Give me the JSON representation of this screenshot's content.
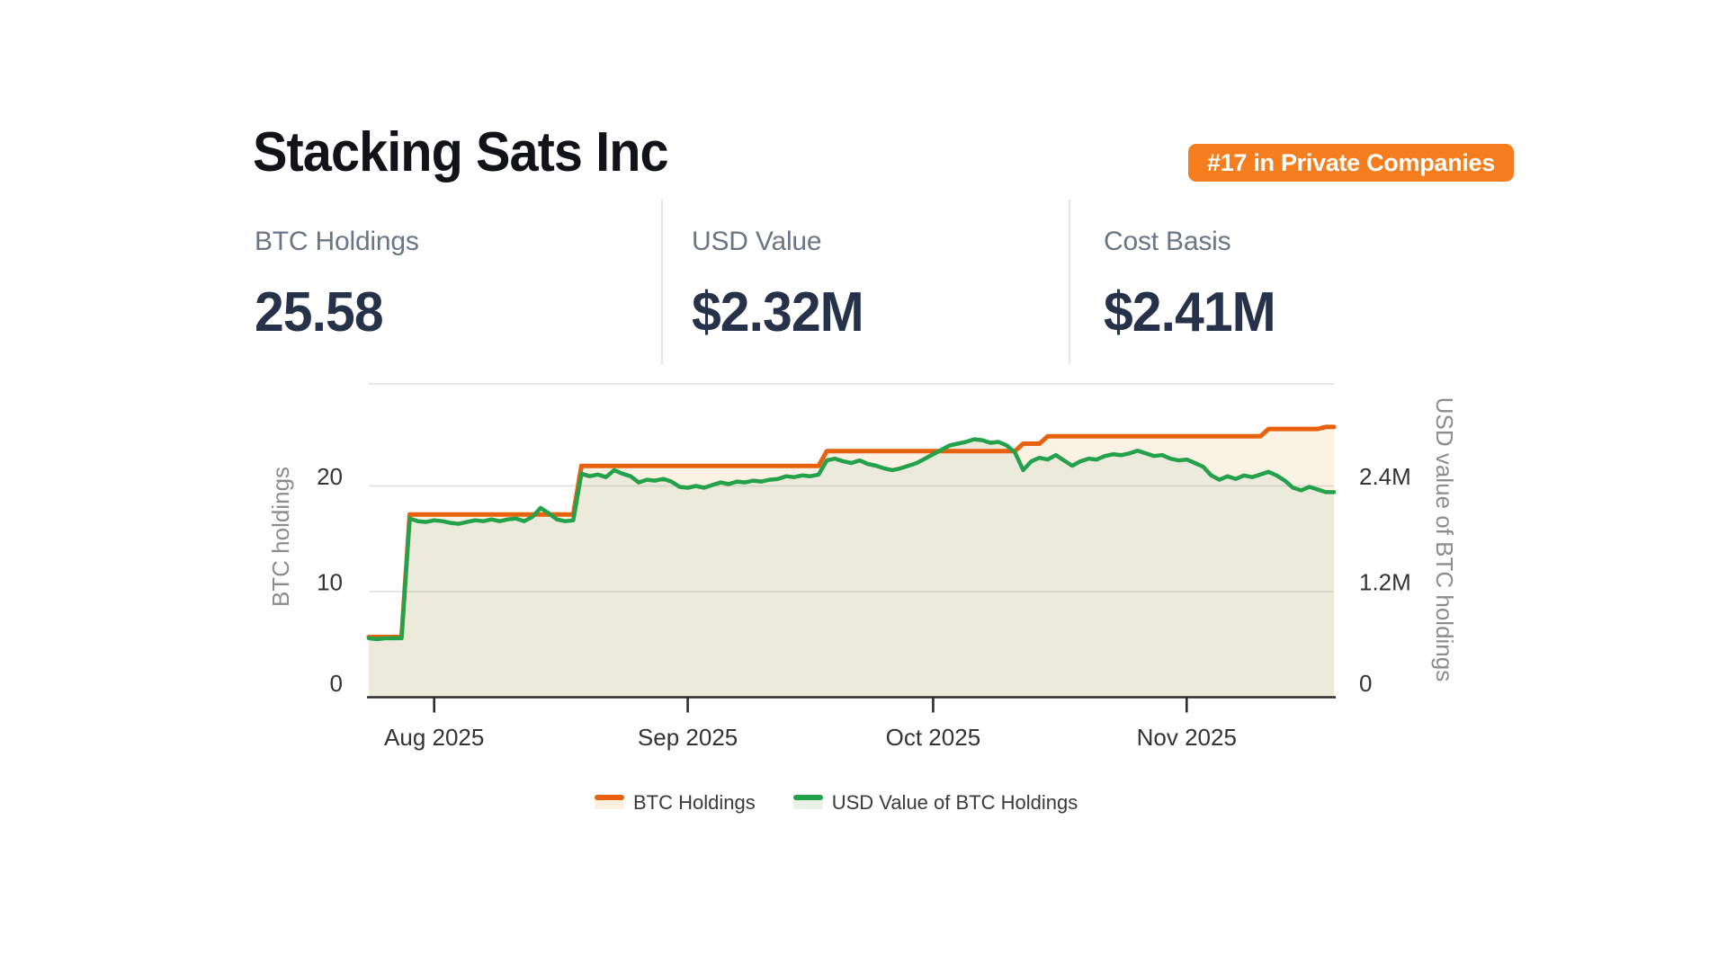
{
  "header": {
    "title": "Stacking Sats Inc",
    "badge": {
      "label": "#17 in Private Companies",
      "bg": "#F57D1E",
      "text_color": "#ffffff"
    }
  },
  "stats": [
    {
      "label": "BTC Holdings",
      "value": "25.58"
    },
    {
      "label": "USD Value",
      "value": "$2.32M"
    },
    {
      "label": "Cost Basis",
      "value": "$2.41M"
    }
  ],
  "chart_data": {
    "type": "area",
    "start_date": "2025-07-24",
    "end_date": "2025-11-19",
    "x_tick_labels": [
      "Aug 2025",
      "Sep 2025",
      "Oct 2025",
      "Nov 2025"
    ],
    "x_tick_day_index": [
      8,
      39,
      69,
      100
    ],
    "left_axis": {
      "label": "BTC holdings",
      "ticks": [
        "0",
        "10",
        "20"
      ],
      "tick_values": [
        0,
        10,
        20
      ],
      "range": [
        0,
        29.7
      ]
    },
    "right_axis": {
      "label": "USD value of BTC holdings",
      "ticks": [
        "0",
        "1.2M",
        "2.4M"
      ],
      "tick_values_m": [
        0,
        1.2,
        2.4
      ],
      "range_m": [
        0,
        3.56
      ],
      "millions_per_left_unit": 0.12
    },
    "grid": {
      "line_color": "#e2e2e2",
      "top_border_color": "#dddddd",
      "axis_line_color": "#2D2D2D",
      "tick_text_color": "#333333",
      "axis_label_color": "#8C8C8C"
    },
    "legend": [
      {
        "label": "BTC Holdings",
        "line_color": "#E8610F",
        "swatch_fill": "#FBEFDE"
      },
      {
        "label": "USD Value of BTC Holdings",
        "line_color": "#23A14B",
        "swatch_fill": "#EAF1E5"
      }
    ],
    "series": [
      {
        "name": "BTC Holdings",
        "axis": "left",
        "unit": "BTC",
        "line_color": "#E8610F",
        "area_fill": "#FBF2E3",
        "values": [
          5.7,
          5.7,
          5.7,
          5.7,
          5.7,
          17.3,
          17.3,
          17.3,
          17.3,
          17.3,
          17.3,
          17.3,
          17.3,
          17.3,
          17.3,
          17.3,
          17.3,
          17.3,
          17.3,
          17.3,
          17.3,
          17.3,
          17.3,
          17.3,
          17.3,
          17.3,
          21.9,
          21.9,
          21.9,
          21.9,
          21.9,
          21.9,
          21.9,
          21.9,
          21.9,
          21.9,
          21.9,
          21.9,
          21.9,
          21.9,
          21.9,
          21.9,
          21.9,
          21.9,
          21.9,
          21.9,
          21.9,
          21.9,
          21.9,
          21.9,
          21.9,
          21.9,
          21.9,
          21.9,
          21.9,
          21.9,
          23.3,
          23.3,
          23.3,
          23.3,
          23.3,
          23.3,
          23.3,
          23.3,
          23.3,
          23.3,
          23.3,
          23.3,
          23.3,
          23.3,
          23.3,
          23.3,
          23.3,
          23.3,
          23.3,
          23.3,
          23.3,
          23.3,
          23.3,
          23.3,
          24,
          24,
          24,
          24.7,
          24.7,
          24.7,
          24.7,
          24.7,
          24.7,
          24.7,
          24.7,
          24.7,
          24.7,
          24.7,
          24.7,
          24.7,
          24.7,
          24.7,
          24.7,
          24.7,
          24.7,
          24.7,
          24.7,
          24.7,
          24.7,
          24.7,
          24.7,
          24.7,
          24.7,
          24.7,
          25.4,
          25.4,
          25.4,
          25.4,
          25.4,
          25.4,
          25.4,
          25.58,
          25.58
        ]
      },
      {
        "name": "USD Value of BTC Holdings",
        "axis": "right",
        "unit": "USD millions",
        "line_color": "#23A14B",
        "area_fill": "#ECEBDB",
        "values": [
          0.67,
          0.66,
          0.67,
          0.67,
          0.67,
          2.03,
          2.0,
          1.99,
          2.01,
          2.0,
          1.98,
          1.97,
          1.99,
          2.01,
          2.0,
          2.02,
          2.0,
          2.02,
          2.03,
          2.0,
          2.05,
          2.15,
          2.09,
          2.02,
          2.0,
          2.01,
          2.54,
          2.51,
          2.53,
          2.5,
          2.58,
          2.54,
          2.51,
          2.44,
          2.47,
          2.46,
          2.48,
          2.45,
          2.39,
          2.38,
          2.4,
          2.38,
          2.41,
          2.44,
          2.42,
          2.45,
          2.44,
          2.46,
          2.45,
          2.47,
          2.48,
          2.51,
          2.5,
          2.52,
          2.51,
          2.53,
          2.69,
          2.71,
          2.68,
          2.66,
          2.69,
          2.65,
          2.63,
          2.6,
          2.58,
          2.6,
          2.63,
          2.66,
          2.71,
          2.76,
          2.81,
          2.86,
          2.88,
          2.9,
          2.93,
          2.92,
          2.89,
          2.9,
          2.86,
          2.78,
          2.58,
          2.68,
          2.72,
          2.7,
          2.75,
          2.69,
          2.63,
          2.68,
          2.71,
          2.7,
          2.74,
          2.76,
          2.75,
          2.77,
          2.8,
          2.77,
          2.74,
          2.75,
          2.71,
          2.69,
          2.7,
          2.66,
          2.62,
          2.52,
          2.47,
          2.51,
          2.48,
          2.52,
          2.5,
          2.53,
          2.56,
          2.52,
          2.46,
          2.38,
          2.35,
          2.39,
          2.36,
          2.33,
          2.33
        ]
      }
    ]
  }
}
